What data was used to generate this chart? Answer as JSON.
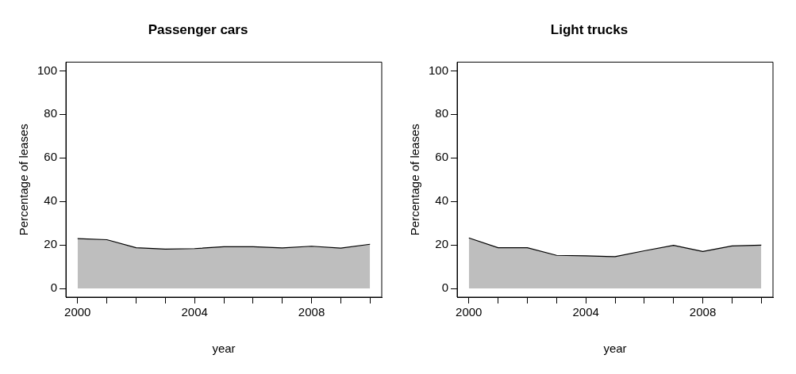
{
  "chart_data": [
    {
      "type": "area",
      "title": "Passenger cars",
      "xlabel": "year",
      "ylabel": "Percentage of leases",
      "x": [
        2000,
        2001,
        2002,
        2003,
        2004,
        2005,
        2006,
        2007,
        2008,
        2009,
        2010
      ],
      "series": [
        {
          "color": "#bebebe",
          "values": [
            22.9,
            22.4,
            18.7,
            18.1,
            18.3,
            19.2,
            19.2,
            18.6,
            19.4,
            18.5,
            20.3
          ]
        }
      ],
      "xlim": [
        1999.6,
        2010.4
      ],
      "xticks": [
        2000,
        {
          "value": 2001,
          "label": null
        },
        {
          "value": 2002,
          "label": null
        },
        {
          "value": 2003,
          "label": null
        },
        2004,
        {
          "value": 2005,
          "label": null
        },
        {
          "value": 2006,
          "label": null
        },
        {
          "value": 2007,
          "label": null
        },
        2008,
        {
          "value": 2009,
          "label": null
        },
        {
          "value": 2010,
          "label": null
        }
      ],
      "ylim": [
        -4,
        104
      ],
      "yticks": [
        0,
        20,
        40,
        60,
        80,
        100
      ],
      "grid": false,
      "legend": false
    },
    {
      "type": "area",
      "title": "Light trucks",
      "xlabel": "year",
      "ylabel": "Percentage of leases",
      "x": [
        2000,
        2001,
        2002,
        2003,
        2004,
        2005,
        2006,
        2007,
        2008,
        2009,
        2010
      ],
      "series": [
        {
          "color": "#bebebe",
          "values": [
            23.2,
            18.7,
            18.7,
            15.2,
            15.0,
            14.6,
            17.3,
            19.8,
            17.0,
            19.5,
            19.9
          ]
        }
      ],
      "xlim": [
        1999.6,
        2010.4
      ],
      "xticks": [
        2000,
        {
          "value": 2001,
          "label": null
        },
        {
          "value": 2002,
          "label": null
        },
        {
          "value": 2003,
          "label": null
        },
        2004,
        {
          "value": 2005,
          "label": null
        },
        {
          "value": 2006,
          "label": null
        },
        {
          "value": 2007,
          "label": null
        },
        2008,
        {
          "value": 2009,
          "label": null
        },
        {
          "value": 2010,
          "label": null
        }
      ],
      "ylim": [
        -4,
        104
      ],
      "yticks": [
        0,
        20,
        40,
        60,
        80,
        100
      ],
      "grid": false,
      "legend": false
    }
  ]
}
